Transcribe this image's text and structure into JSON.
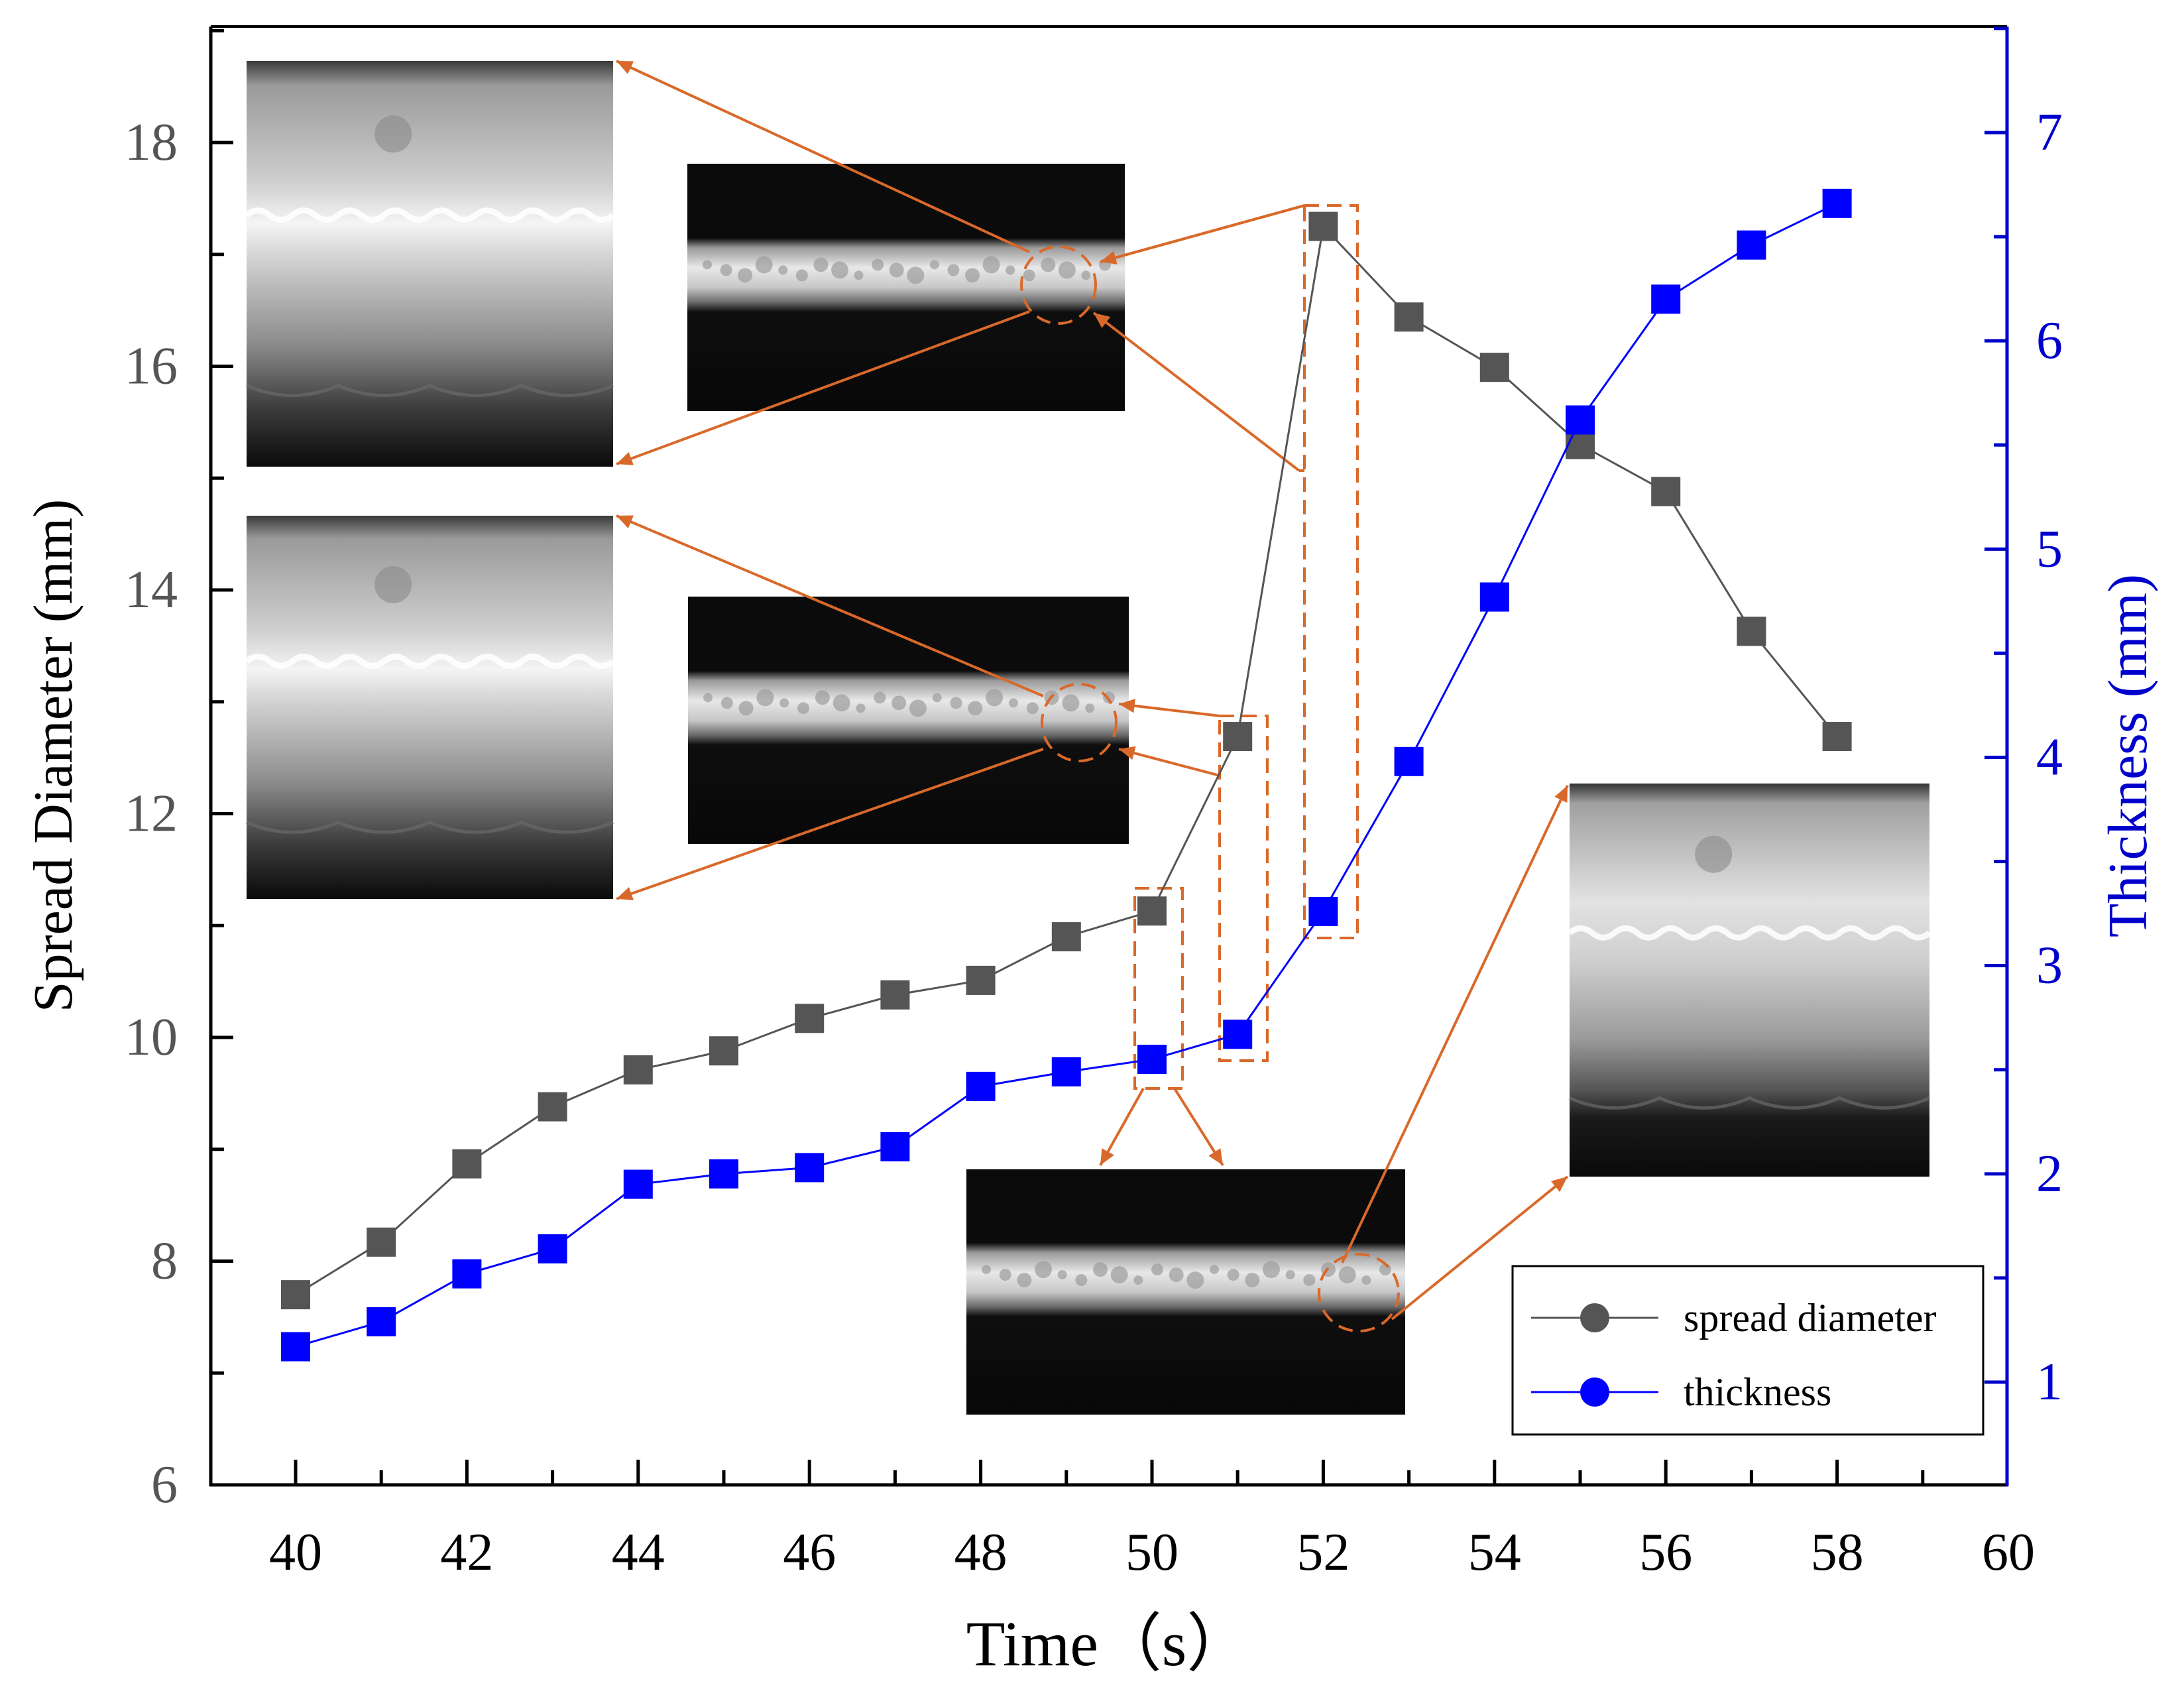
{
  "colors": {
    "series_gray": "#555555",
    "series_blue": "#0000ff",
    "right_axis": "#0000cc",
    "annotation": "#d9692a",
    "axis": "#000000"
  },
  "chart_data": {
    "type": "scatter",
    "x": [
      40,
      41,
      42,
      43,
      44,
      45,
      46,
      47,
      48,
      49,
      50,
      51,
      52,
      53,
      54,
      55,
      56,
      57,
      58
    ],
    "series": [
      {
        "name": "spread diameter",
        "axis": "left",
        "marker": "square",
        "line": "solid",
        "values": [
          7.7,
          8.17,
          8.87,
          9.38,
          9.71,
          9.88,
          10.17,
          10.38,
          10.51,
          10.9,
          11.13,
          12.69,
          17.25,
          16.44,
          15.99,
          15.3,
          14.88,
          13.63,
          12.69
        ]
      },
      {
        "name": "thickness",
        "axis": "right",
        "marker": "square",
        "line": "solid",
        "values": [
          1.17,
          1.29,
          1.52,
          1.64,
          1.95,
          2.0,
          2.03,
          2.13,
          2.42,
          2.49,
          2.55,
          2.67,
          3.26,
          3.98,
          4.77,
          5.62,
          6.2,
          6.46,
          6.66
        ]
      }
    ],
    "xlabel": "Time（s）",
    "ylabel_left": "Spread Diameter (mm)",
    "ylabel_right": "Thickness (mm)",
    "xlim": [
      39,
      60
    ],
    "ylim_left": [
      6,
      19
    ],
    "ylim_right": [
      0.5,
      7.5
    ],
    "x_ticks": [
      "40",
      "42",
      "44",
      "46",
      "48",
      "50",
      "52",
      "54",
      "56",
      "58",
      "60"
    ],
    "y_left_ticks": [
      "6",
      "8",
      "10",
      "12",
      "14",
      "16",
      "18"
    ],
    "y_right_ticks": [
      "1",
      "2",
      "3",
      "4",
      "5",
      "6",
      "7"
    ],
    "legend": {
      "placement": "bottom-right",
      "entries": [
        "spread diameter",
        "thickness"
      ]
    },
    "grid": false,
    "insets": [
      {
        "name": "inset-t52-zoom",
        "description_source": "high-speed image"
      },
      {
        "name": "inset-t52-overview"
      },
      {
        "name": "inset-t51-zoom"
      },
      {
        "name": "inset-t51-overview"
      },
      {
        "name": "inset-t50-overview"
      },
      {
        "name": "inset-t50-zoom"
      }
    ]
  }
}
